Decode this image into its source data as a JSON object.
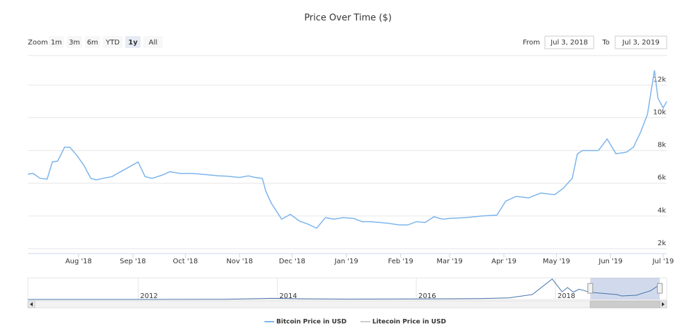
{
  "chart_data": {
    "type": "line",
    "title": "Price Over Time ($)",
    "range_selector": {
      "zoom_label": "Zoom",
      "buttons": [
        "1m",
        "3m",
        "6m",
        "YTD",
        "1y",
        "All"
      ],
      "selected": 4,
      "from_label": "From",
      "from": "Jul 3, 2018",
      "to_label": "To",
      "to": "Jul 3, 2019"
    },
    "xlim": [
      "2018-07-03",
      "2019-07-03"
    ],
    "xticks": [
      {
        "value": "2018-08-01",
        "label": "Aug '18"
      },
      {
        "value": "2018-09-01",
        "label": "Sep '18"
      },
      {
        "value": "2018-10-01",
        "label": "Oct '18"
      },
      {
        "value": "2018-11-01",
        "label": "Nov '18"
      },
      {
        "value": "2018-12-01",
        "label": "Dec '18"
      },
      {
        "value": "2019-01-01",
        "label": "Jan '19"
      },
      {
        "value": "2019-02-01",
        "label": "Feb '19"
      },
      {
        "value": "2019-03-01",
        "label": "Mar '19"
      },
      {
        "value": "2019-04-01",
        "label": "Apr '19"
      },
      {
        "value": "2019-05-01",
        "label": "May '19"
      },
      {
        "value": "2019-06-01",
        "label": "Jun '19"
      },
      {
        "value": "2019-07-01",
        "label": "Jul '19"
      }
    ],
    "ylim": [
      1700,
      13800
    ],
    "yticks": [
      {
        "value": 2000,
        "label": "2k"
      },
      {
        "value": 4000,
        "label": "4k"
      },
      {
        "value": 6000,
        "label": "6k"
      },
      {
        "value": 8000,
        "label": "8k"
      },
      {
        "value": 10000,
        "label": "10k"
      },
      {
        "value": 12000,
        "label": "12k"
      }
    ],
    "grid": true,
    "x": [
      "2018-07-03",
      "2018-07-06",
      "2018-07-10",
      "2018-07-14",
      "2018-07-17",
      "2018-07-20",
      "2018-07-24",
      "2018-07-27",
      "2018-07-31",
      "2018-08-04",
      "2018-08-08",
      "2018-08-11",
      "2018-08-15",
      "2018-08-20",
      "2018-08-25",
      "2018-08-30",
      "2018-09-04",
      "2018-09-08",
      "2018-09-12",
      "2018-09-18",
      "2018-09-22",
      "2018-09-28",
      "2018-10-05",
      "2018-10-10",
      "2018-10-15",
      "2018-10-20",
      "2018-10-25",
      "2018-11-01",
      "2018-11-06",
      "2018-11-10",
      "2018-11-14",
      "2018-11-16",
      "2018-11-19",
      "2018-11-22",
      "2018-11-25",
      "2018-11-30",
      "2018-12-05",
      "2018-12-10",
      "2018-12-15",
      "2018-12-20",
      "2018-12-25",
      "2018-12-30",
      "2019-01-05",
      "2019-01-10",
      "2019-01-15",
      "2019-01-20",
      "2019-01-25",
      "2019-01-31",
      "2019-02-05",
      "2019-02-10",
      "2019-02-15",
      "2019-02-20",
      "2019-02-25",
      "2019-03-01",
      "2019-03-10",
      "2019-03-20",
      "2019-03-28",
      "2019-04-02",
      "2019-04-08",
      "2019-04-15",
      "2019-04-22",
      "2019-04-30",
      "2019-05-05",
      "2019-05-10",
      "2019-05-13",
      "2019-05-16",
      "2019-05-20",
      "2019-05-25",
      "2019-05-30",
      "2019-06-04",
      "2019-06-10",
      "2019-06-14",
      "2019-06-18",
      "2019-06-22",
      "2019-06-26",
      "2019-06-28",
      "2019-07-01",
      "2019-07-03"
    ],
    "series": [
      {
        "name": "Bitcoin Price in USD",
        "color": "#7cb5ec",
        "visible": true,
        "values": [
          6550,
          6600,
          6300,
          6250,
          7300,
          7350,
          8200,
          8200,
          7700,
          7100,
          6300,
          6200,
          6300,
          6400,
          6700,
          7000,
          7300,
          6400,
          6300,
          6500,
          6700,
          6600,
          6600,
          6550,
          6500,
          6450,
          6430,
          6350,
          6450,
          6350,
          6300,
          5500,
          4800,
          4300,
          3800,
          4100,
          3700,
          3500,
          3250,
          3900,
          3800,
          3900,
          3850,
          3650,
          3650,
          3600,
          3550,
          3450,
          3450,
          3650,
          3600,
          3950,
          3800,
          3850,
          3900,
          4000,
          4050,
          4900,
          5200,
          5100,
          5400,
          5300,
          5700,
          6300,
          7800,
          8000,
          8000,
          8000,
          8700,
          7800,
          7900,
          8200,
          9100,
          10200,
          12900,
          11200,
          10600,
          11000
        ]
      },
      {
        "name": "Litecoin Price in USD",
        "color": "#cccccc",
        "visible": false
      }
    ],
    "navigator": {
      "xlim": [
        "2010-06-01",
        "2019-07-10"
      ],
      "xticks": [
        {
          "value": "2012-01-01",
          "label": "2012"
        },
        {
          "value": "2014-01-01",
          "label": "2014"
        },
        {
          "value": "2016-01-01",
          "label": "2016"
        },
        {
          "value": "2018-01-01",
          "label": "2018"
        }
      ],
      "ylim": [
        0,
        20000
      ],
      "x": [
        "2010-06-01",
        "2012-01-01",
        "2013-04-01",
        "2013-12-01",
        "2014-06-01",
        "2015-01-01",
        "2016-01-01",
        "2016-12-01",
        "2017-05-01",
        "2017-09-01",
        "2017-12-15",
        "2018-02-05",
        "2018-03-05",
        "2018-04-05",
        "2018-05-05",
        "2018-07-03",
        "2018-11-20",
        "2018-12-15",
        "2019-03-01",
        "2019-05-15",
        "2019-06-26",
        "2019-07-03"
      ],
      "values": [
        0,
        5,
        100,
        1000,
        600,
        300,
        430,
        800,
        1500,
        4500,
        19000,
        7000,
        11000,
        6800,
        9500,
        6550,
        4500,
        3250,
        3850,
        8000,
        12900,
        11000
      ]
    }
  }
}
